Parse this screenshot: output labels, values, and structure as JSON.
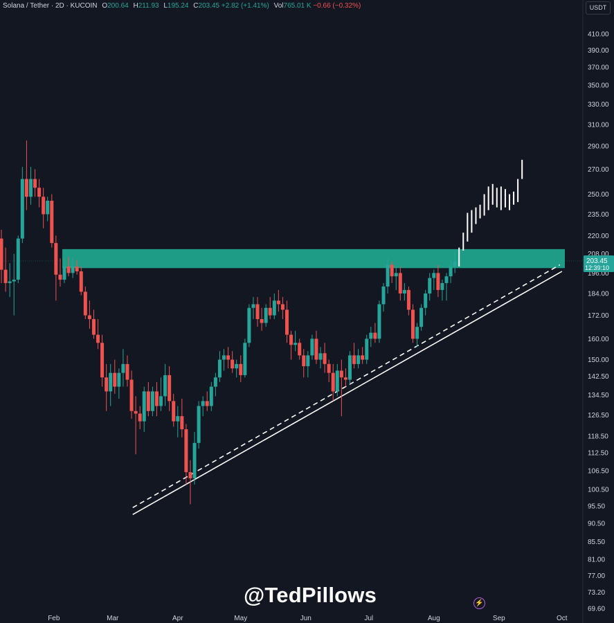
{
  "legend": {
    "symbol": "Solana / Tether · 2D · KUCOIN",
    "o_label": "O",
    "o_value": "200.64",
    "h_label": "H",
    "h_value": "211.93",
    "l_label": "L",
    "l_value": "195.24",
    "c_label": "C",
    "c_value": "203.45",
    "change": "+2.82 (+1.41%)",
    "vol_label": "Vol",
    "vol_value": "765.01 K",
    "vol_change": "−0.66 (−0.32%)"
  },
  "currency": "USDT",
  "watermark": "@TedPillows",
  "price_tag": {
    "price": "203.45",
    "countdown": "12:39:10"
  },
  "colors": {
    "background": "#131722",
    "up": "#26a69a",
    "down": "#ef5350",
    "zone": "#1e9c85",
    "projection": "#ffffff"
  },
  "chart_data": {
    "type": "candlestick",
    "title": "Solana / Tether · 2D · KUCOIN",
    "y_scale": "log",
    "ylim": [
      69.6,
      420
    ],
    "y_ticks": [
      "410.00",
      "390.00",
      "370.00",
      "350.00",
      "330.00",
      "310.00",
      "290.00",
      "270.00",
      "250.00",
      "235.00",
      "220.00",
      "208.00",
      "196.00",
      "184.00",
      "172.00",
      "160.00",
      "150.00",
      "142.50",
      "134.50",
      "126.50",
      "118.50",
      "112.50",
      "106.50",
      "100.50",
      "95.50",
      "90.50",
      "85.50",
      "81.00",
      "77.00",
      "73.20",
      "69.60"
    ],
    "x_ticks": [
      "Feb",
      "Mar",
      "Apr",
      "May",
      "Jun",
      "Jul",
      "Aug",
      "Sep",
      "Oct"
    ],
    "x_range": [
      "2025-01-07",
      "2025-10-01"
    ],
    "resistance_zone": {
      "low": 199,
      "high": 211
    },
    "support_lines": [
      {
        "style": "solid",
        "from": [
          "2025-03-31",
          93
        ],
        "to": [
          "2025-10-01",
          197
        ]
      },
      {
        "style": "dashed",
        "from": [
          "2025-03-31",
          95
        ],
        "to": [
          "2025-09-30",
          201
        ]
      }
    ],
    "candles": [
      {
        "date": "2025-01-07",
        "o": 218,
        "h": 224,
        "l": 190,
        "c": 198
      },
      {
        "date": "2025-01-09",
        "o": 198,
        "h": 212,
        "l": 185,
        "c": 190
      },
      {
        "date": "2025-01-11",
        "o": 190,
        "h": 202,
        "l": 182,
        "c": 191
      },
      {
        "date": "2025-01-13",
        "o": 191,
        "h": 208,
        "l": 172,
        "c": 192
      },
      {
        "date": "2025-01-15",
        "o": 192,
        "h": 220,
        "l": 190,
        "c": 218
      },
      {
        "date": "2025-01-17",
        "o": 218,
        "h": 272,
        "l": 215,
        "c": 262
      },
      {
        "date": "2025-01-19",
        "o": 262,
        "h": 295,
        "l": 238,
        "c": 248
      },
      {
        "date": "2025-01-21",
        "o": 248,
        "h": 272,
        "l": 242,
        "c": 262
      },
      {
        "date": "2025-01-23",
        "o": 262,
        "h": 270,
        "l": 248,
        "c": 255
      },
      {
        "date": "2025-01-25",
        "o": 255,
        "h": 262,
        "l": 240,
        "c": 248
      },
      {
        "date": "2025-01-27",
        "o": 248,
        "h": 255,
        "l": 225,
        "c": 235
      },
      {
        "date": "2025-01-29",
        "o": 235,
        "h": 248,
        "l": 230,
        "c": 245
      },
      {
        "date": "2025-01-31",
        "o": 245,
        "h": 250,
        "l": 212,
        "c": 215
      },
      {
        "date": "2025-02-02",
        "o": 215,
        "h": 220,
        "l": 180,
        "c": 195
      },
      {
        "date": "2025-02-04",
        "o": 195,
        "h": 205,
        "l": 188,
        "c": 192
      },
      {
        "date": "2025-02-06",
        "o": 192,
        "h": 205,
        "l": 190,
        "c": 200
      },
      {
        "date": "2025-02-08",
        "o": 200,
        "h": 206,
        "l": 194,
        "c": 196
      },
      {
        "date": "2025-02-10",
        "o": 196,
        "h": 205,
        "l": 193,
        "c": 200
      },
      {
        "date": "2025-02-12",
        "o": 200,
        "h": 204,
        "l": 195,
        "c": 197
      },
      {
        "date": "2025-02-14",
        "o": 197,
        "h": 200,
        "l": 183,
        "c": 185
      },
      {
        "date": "2025-02-16",
        "o": 185,
        "h": 188,
        "l": 170,
        "c": 172
      },
      {
        "date": "2025-02-18",
        "o": 172,
        "h": 180,
        "l": 165,
        "c": 170
      },
      {
        "date": "2025-02-20",
        "o": 170,
        "h": 175,
        "l": 160,
        "c": 162
      },
      {
        "date": "2025-02-22",
        "o": 162,
        "h": 170,
        "l": 155,
        "c": 158
      },
      {
        "date": "2025-02-24",
        "o": 158,
        "h": 162,
        "l": 138,
        "c": 142
      },
      {
        "date": "2025-02-26",
        "o": 142,
        "h": 148,
        "l": 128,
        "c": 136
      },
      {
        "date": "2025-02-28",
        "o": 136,
        "h": 148,
        "l": 130,
        "c": 144
      },
      {
        "date": "2025-03-02",
        "o": 144,
        "h": 150,
        "l": 135,
        "c": 138
      },
      {
        "date": "2025-03-04",
        "o": 138,
        "h": 146,
        "l": 133,
        "c": 144
      },
      {
        "date": "2025-03-06",
        "o": 144,
        "h": 155,
        "l": 138,
        "c": 148
      },
      {
        "date": "2025-03-08",
        "o": 148,
        "h": 152,
        "l": 138,
        "c": 141
      },
      {
        "date": "2025-03-10",
        "o": 141,
        "h": 145,
        "l": 125,
        "c": 128
      },
      {
        "date": "2025-03-12",
        "o": 128,
        "h": 134,
        "l": 112,
        "c": 127
      },
      {
        "date": "2025-03-14",
        "o": 127,
        "h": 130,
        "l": 121,
        "c": 124
      },
      {
        "date": "2025-03-16",
        "o": 124,
        "h": 138,
        "l": 120,
        "c": 136
      },
      {
        "date": "2025-03-18",
        "o": 136,
        "h": 140,
        "l": 126,
        "c": 128
      },
      {
        "date": "2025-03-20",
        "o": 128,
        "h": 138,
        "l": 126,
        "c": 136
      },
      {
        "date": "2025-03-22",
        "o": 136,
        "h": 140,
        "l": 126,
        "c": 130
      },
      {
        "date": "2025-03-24",
        "o": 130,
        "h": 142,
        "l": 128,
        "c": 134
      },
      {
        "date": "2025-03-26",
        "o": 134,
        "h": 148,
        "l": 130,
        "c": 143
      },
      {
        "date": "2025-03-28",
        "o": 143,
        "h": 147,
        "l": 128,
        "c": 132
      },
      {
        "date": "2025-03-30",
        "o": 132,
        "h": 135,
        "l": 122,
        "c": 124
      },
      {
        "date": "2025-04-01",
        "o": 124,
        "h": 130,
        "l": 118,
        "c": 126
      },
      {
        "date": "2025-04-03",
        "o": 126,
        "h": 133,
        "l": 118,
        "c": 121
      },
      {
        "date": "2025-04-05",
        "o": 121,
        "h": 123,
        "l": 102,
        "c": 106
      },
      {
        "date": "2025-04-07",
        "o": 106,
        "h": 110,
        "l": 96,
        "c": 104
      },
      {
        "date": "2025-04-09",
        "o": 104,
        "h": 120,
        "l": 102,
        "c": 116
      },
      {
        "date": "2025-04-11",
        "o": 116,
        "h": 132,
        "l": 114,
        "c": 130
      },
      {
        "date": "2025-04-13",
        "o": 130,
        "h": 134,
        "l": 126,
        "c": 132
      },
      {
        "date": "2025-04-15",
        "o": 132,
        "h": 136,
        "l": 128,
        "c": 130
      },
      {
        "date": "2025-04-17",
        "o": 130,
        "h": 140,
        "l": 128,
        "c": 138
      },
      {
        "date": "2025-04-19",
        "o": 138,
        "h": 144,
        "l": 134,
        "c": 142
      },
      {
        "date": "2025-04-21",
        "o": 142,
        "h": 154,
        "l": 140,
        "c": 150
      },
      {
        "date": "2025-04-23",
        "o": 150,
        "h": 155,
        "l": 145,
        "c": 152
      },
      {
        "date": "2025-04-25",
        "o": 152,
        "h": 156,
        "l": 146,
        "c": 150
      },
      {
        "date": "2025-04-27",
        "o": 150,
        "h": 154,
        "l": 144,
        "c": 146
      },
      {
        "date": "2025-04-29",
        "o": 146,
        "h": 150,
        "l": 142,
        "c": 148
      },
      {
        "date": "2025-05-01",
        "o": 148,
        "h": 152,
        "l": 140,
        "c": 143
      },
      {
        "date": "2025-05-03",
        "o": 143,
        "h": 160,
        "l": 142,
        "c": 158
      },
      {
        "date": "2025-05-05",
        "o": 158,
        "h": 178,
        "l": 156,
        "c": 176
      },
      {
        "date": "2025-05-07",
        "o": 176,
        "h": 182,
        "l": 170,
        "c": 178
      },
      {
        "date": "2025-05-09",
        "o": 178,
        "h": 182,
        "l": 166,
        "c": 170
      },
      {
        "date": "2025-05-11",
        "o": 170,
        "h": 176,
        "l": 164,
        "c": 168
      },
      {
        "date": "2025-05-13",
        "o": 168,
        "h": 178,
        "l": 166,
        "c": 176
      },
      {
        "date": "2025-05-15",
        "o": 176,
        "h": 182,
        "l": 170,
        "c": 172
      },
      {
        "date": "2025-05-17",
        "o": 172,
        "h": 184,
        "l": 170,
        "c": 180
      },
      {
        "date": "2025-05-19",
        "o": 180,
        "h": 186,
        "l": 174,
        "c": 178
      },
      {
        "date": "2025-05-21",
        "o": 178,
        "h": 182,
        "l": 170,
        "c": 175
      },
      {
        "date": "2025-05-23",
        "o": 175,
        "h": 180,
        "l": 158,
        "c": 162
      },
      {
        "date": "2025-05-25",
        "o": 162,
        "h": 164,
        "l": 150,
        "c": 157
      },
      {
        "date": "2025-05-27",
        "o": 157,
        "h": 164,
        "l": 154,
        "c": 158
      },
      {
        "date": "2025-05-29",
        "o": 158,
        "h": 160,
        "l": 150,
        "c": 152
      },
      {
        "date": "2025-05-31",
        "o": 152,
        "h": 155,
        "l": 142,
        "c": 147
      },
      {
        "date": "2025-06-02",
        "o": 147,
        "h": 154,
        "l": 142,
        "c": 152
      },
      {
        "date": "2025-06-04",
        "o": 152,
        "h": 162,
        "l": 150,
        "c": 160
      },
      {
        "date": "2025-06-06",
        "o": 160,
        "h": 164,
        "l": 148,
        "c": 150
      },
      {
        "date": "2025-06-08",
        "o": 150,
        "h": 156,
        "l": 146,
        "c": 153
      },
      {
        "date": "2025-06-10",
        "o": 153,
        "h": 158,
        "l": 144,
        "c": 148
      },
      {
        "date": "2025-06-12",
        "o": 148,
        "h": 150,
        "l": 140,
        "c": 144
      },
      {
        "date": "2025-06-14",
        "o": 144,
        "h": 148,
        "l": 132,
        "c": 136
      },
      {
        "date": "2025-06-16",
        "o": 136,
        "h": 148,
        "l": 134,
        "c": 145
      },
      {
        "date": "2025-06-18",
        "o": 145,
        "h": 150,
        "l": 126,
        "c": 142
      },
      {
        "date": "2025-06-20",
        "o": 142,
        "h": 146,
        "l": 138,
        "c": 141
      },
      {
        "date": "2025-06-22",
        "o": 141,
        "h": 154,
        "l": 139,
        "c": 152
      },
      {
        "date": "2025-06-24",
        "o": 152,
        "h": 158,
        "l": 146,
        "c": 148
      },
      {
        "date": "2025-06-26",
        "o": 148,
        "h": 155,
        "l": 146,
        "c": 152
      },
      {
        "date": "2025-06-28",
        "o": 152,
        "h": 156,
        "l": 148,
        "c": 150
      },
      {
        "date": "2025-06-30",
        "o": 150,
        "h": 162,
        "l": 148,
        "c": 160
      },
      {
        "date": "2025-07-02",
        "o": 160,
        "h": 166,
        "l": 156,
        "c": 163
      },
      {
        "date": "2025-07-04",
        "o": 163,
        "h": 168,
        "l": 158,
        "c": 160
      },
      {
        "date": "2025-07-06",
        "o": 160,
        "h": 180,
        "l": 158,
        "c": 178
      },
      {
        "date": "2025-07-08",
        "o": 178,
        "h": 190,
        "l": 174,
        "c": 188
      },
      {
        "date": "2025-07-10",
        "o": 188,
        "h": 205,
        "l": 184,
        "c": 201
      },
      {
        "date": "2025-07-12",
        "o": 201,
        "h": 203,
        "l": 190,
        "c": 194
      },
      {
        "date": "2025-07-14",
        "o": 194,
        "h": 200,
        "l": 186,
        "c": 196
      },
      {
        "date": "2025-07-16",
        "o": 196,
        "h": 200,
        "l": 180,
        "c": 184
      },
      {
        "date": "2025-07-18",
        "o": 184,
        "h": 190,
        "l": 180,
        "c": 186
      },
      {
        "date": "2025-07-20",
        "o": 186,
        "h": 188,
        "l": 172,
        "c": 175
      },
      {
        "date": "2025-07-22",
        "o": 175,
        "h": 178,
        "l": 158,
        "c": 160
      },
      {
        "date": "2025-07-24",
        "o": 160,
        "h": 168,
        "l": 156,
        "c": 166
      },
      {
        "date": "2025-07-26",
        "o": 166,
        "h": 178,
        "l": 164,
        "c": 176
      },
      {
        "date": "2025-07-28",
        "o": 176,
        "h": 186,
        "l": 172,
        "c": 184
      },
      {
        "date": "2025-07-30",
        "o": 184,
        "h": 196,
        "l": 180,
        "c": 193
      },
      {
        "date": "2025-08-01",
        "o": 193,
        "h": 198,
        "l": 186,
        "c": 196
      },
      {
        "date": "2025-08-03",
        "o": 196,
        "h": 201,
        "l": 182,
        "c": 186
      },
      {
        "date": "2025-08-05",
        "o": 186,
        "h": 192,
        "l": 180,
        "c": 190
      },
      {
        "date": "2025-08-07",
        "o": 190,
        "h": 196,
        "l": 180,
        "c": 194
      },
      {
        "date": "2025-08-09",
        "o": 194,
        "h": 204,
        "l": 190,
        "c": 200
      },
      {
        "date": "2025-08-11",
        "o": 200,
        "h": 210,
        "l": 196,
        "c": 203
      }
    ],
    "projection": [
      {
        "date": "2025-08-13",
        "h": 212,
        "l": 200
      },
      {
        "date": "2025-08-15",
        "h": 222,
        "l": 210
      },
      {
        "date": "2025-08-17",
        "h": 236,
        "l": 216
      },
      {
        "date": "2025-08-19",
        "h": 238,
        "l": 222
      },
      {
        "date": "2025-08-21",
        "h": 240,
        "l": 228
      },
      {
        "date": "2025-08-23",
        "h": 242,
        "l": 232
      },
      {
        "date": "2025-08-25",
        "h": 250,
        "l": 234
      },
      {
        "date": "2025-08-27",
        "h": 256,
        "l": 238
      },
      {
        "date": "2025-08-29",
        "h": 258,
        "l": 242
      },
      {
        "date": "2025-08-31",
        "h": 255,
        "l": 240
      },
      {
        "date": "2025-09-02",
        "h": 256,
        "l": 238
      },
      {
        "date": "2025-09-04",
        "h": 254,
        "l": 240
      },
      {
        "date": "2025-09-06",
        "h": 250,
        "l": 238
      },
      {
        "date": "2025-09-08",
        "h": 252,
        "l": 242
      },
      {
        "date": "2025-09-10",
        "h": 262,
        "l": 244
      },
      {
        "date": "2025-09-12",
        "h": 278,
        "l": 262
      }
    ]
  }
}
